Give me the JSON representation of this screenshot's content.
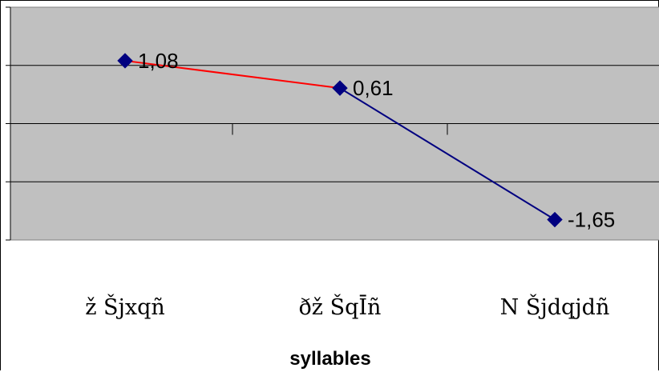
{
  "chart_data": {
    "type": "line",
    "categories": [
      "ž Šjxqñ",
      "ðž ŠqĪñ",
      "N Šjdqjdñ"
    ],
    "values": [
      1.08,
      0.61,
      -1.65
    ],
    "data_labels": [
      "1,08",
      "0,61",
      "-1,65"
    ],
    "title": "",
    "xlabel": "syllables",
    "ylabel": "",
    "ylim": [
      -2,
      2
    ],
    "grid": true,
    "segment_colors": [
      "#ff0000",
      "#000080"
    ],
    "marker_color": "#000080",
    "plot_background": "#c0c0c0"
  }
}
